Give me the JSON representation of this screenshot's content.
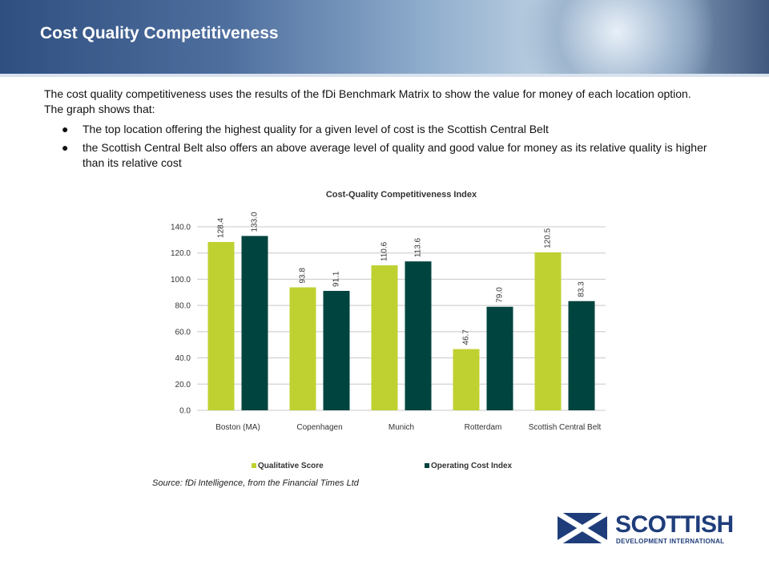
{
  "header": {
    "title": "Cost Quality Competitiveness"
  },
  "intro": {
    "text": "The cost quality competitiveness uses the results of the fDi Benchmark Matrix to show the value for money of each location option.  The graph shows that:"
  },
  "bullets": [
    {
      "text": "The top location offering the highest quality for a given level of cost is the Scottish Central Belt"
    },
    {
      "text": "the Scottish Central Belt also offers an above average level of quality and good value for money as its relative quality is higher than its relative cost"
    }
  ],
  "chart_data": {
    "type": "bar",
    "title": "Cost-Quality Competitiveness Index",
    "categories": [
      "Boston (MA)",
      "Copenhagen",
      "Munich",
      "Rotterdam",
      "Scottish Central Belt"
    ],
    "series": [
      {
        "name": "Qualitative Score",
        "values": [
          128.4,
          93.8,
          110.6,
          46.7,
          120.5
        ],
        "color": "#bfd130"
      },
      {
        "name": "Operating Cost Index",
        "values": [
          133.0,
          91.1,
          113.6,
          79.0,
          83.3
        ],
        "color": "#00443f"
      }
    ],
    "yticks": [
      "0.0",
      "20.0",
      "40.0",
      "60.0",
      "80.0",
      "100.0",
      "120.0",
      "140.0"
    ],
    "ylim": [
      0,
      140
    ],
    "grid": true,
    "legend": "bottom"
  },
  "source": {
    "text": "Source: fDi Intelligence, from the Financial Times Ltd"
  },
  "logo": {
    "line1": "SCOTTISH",
    "line2": "DEVELOPMENT INTERNATIONAL",
    "color": "#1f3d7a"
  }
}
